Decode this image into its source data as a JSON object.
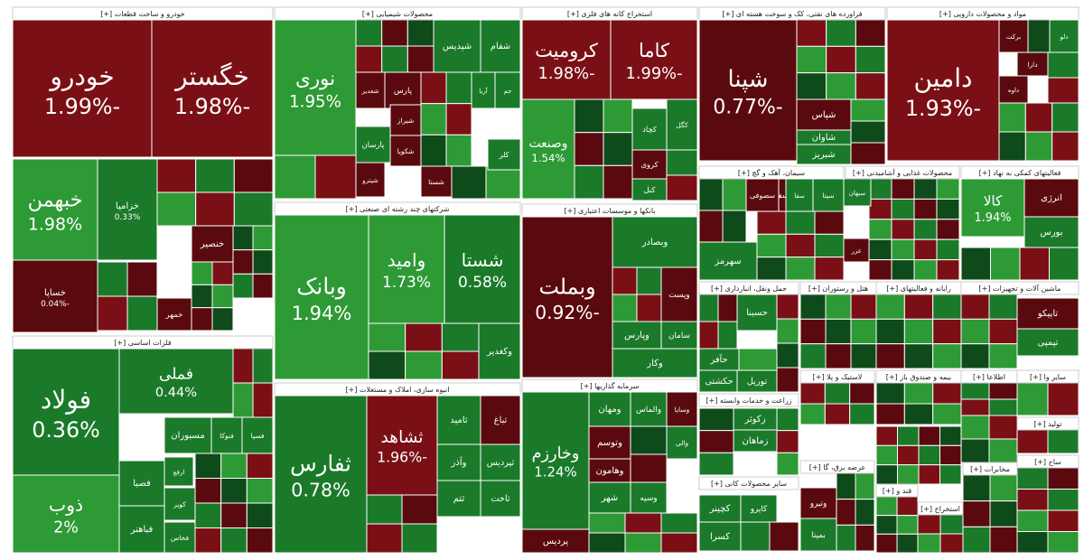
{
  "chart_data": {
    "type": "treemap",
    "colors": {
      "dark_red": "#5a0a0e",
      "red": "#7a1015",
      "bright_red": "#c8161d",
      "dark_green": "#0f4a1a",
      "green": "#1a7a2a",
      "bright_green": "#2e9a35",
      "header_bg": "#ffffff",
      "header_text": "#222222",
      "border": "#ffffff"
    },
    "sectors": [
      {
        "name": "خودرو و ساخت قطعات [+]",
        "stocks": [
          {
            "name": "خودرو",
            "change": "-1.99%",
            "value": -1.99
          },
          {
            "name": "خگستر",
            "change": "-1.98%",
            "value": -1.98
          },
          {
            "name": "خبهمن",
            "change": "1.98%",
            "value": 1.98
          },
          {
            "name": "خزامیا",
            "change": "0.33%",
            "value": 0.33
          },
          {
            "name": "خساپا",
            "change": "-0.04%",
            "value": -0.04
          },
          {
            "name": "خنصیر",
            "change": "",
            "value": -1
          },
          {
            "name": "خمهر",
            "change": "",
            "value": -1
          }
        ]
      },
      {
        "name": "فلزات اساسی [+]",
        "stocks": [
          {
            "name": "فولاد",
            "change": "0.36%",
            "value": 0.36
          },
          {
            "name": "فملی",
            "change": "0.44%",
            "value": 0.44
          },
          {
            "name": "ذوب",
            "change": "2%",
            "value": 2
          },
          {
            "name": "مسبوران",
            "change": "",
            "value": 1
          },
          {
            "name": "فنوکا",
            "change": "",
            "value": 1
          },
          {
            "name": "فسپا",
            "change": "",
            "value": 1
          },
          {
            "name": "فصبا",
            "change": "",
            "value": 1
          },
          {
            "name": "فباهنر",
            "change": "",
            "value": 1
          },
          {
            "name": "کویر",
            "change": "",
            "value": 1
          },
          {
            "name": "فخاس",
            "change": "",
            "value": 1
          },
          {
            "name": "ارفع",
            "change": "",
            "value": 1
          }
        ]
      },
      {
        "name": "محصولات شیمیایی [+]",
        "stocks": [
          {
            "name": "نوری",
            "change": "1.95%",
            "value": 1.95
          },
          {
            "name": "شپدیس",
            "change": "",
            "value": 1
          },
          {
            "name": "شفام",
            "change": "",
            "value": 1
          },
          {
            "name": "پارس",
            "change": "",
            "value": -1
          },
          {
            "name": "شغدیر",
            "change": "",
            "value": -1
          },
          {
            "name": "پارسان",
            "change": "",
            "value": 1
          },
          {
            "name": "شکویا",
            "change": "",
            "value": -1
          },
          {
            "name": "شیراز",
            "change": "",
            "value": -1
          },
          {
            "name": "شپترو",
            "change": "",
            "value": -1
          },
          {
            "name": "شستا",
            "change": "",
            "value": -1
          },
          {
            "name": "جم",
            "change": "",
            "value": 1
          },
          {
            "name": "آریا",
            "change": "",
            "value": 1
          },
          {
            "name": "کلر",
            "change": "",
            "value": 1
          }
        ]
      },
      {
        "name": "شرکتهای چند رشته ای صنعتی [+]",
        "stocks": [
          {
            "name": "وبانک",
            "change": "1.94%",
            "value": 1.94
          },
          {
            "name": "وامید",
            "change": "1.73%",
            "value": 1.73
          },
          {
            "name": "شستا",
            "change": "0.58%",
            "value": 0.58
          },
          {
            "name": "وکغدیر",
            "change": "",
            "value": 1
          }
        ]
      },
      {
        "name": "انبوه سازی، املاک و مستغلات [+]",
        "stocks": [
          {
            "name": "ثفارس",
            "change": "0.78%",
            "value": 0.78
          },
          {
            "name": "ثشاهد",
            "change": "-1.96%",
            "value": -1.96
          },
          {
            "name": "ثامید",
            "change": "",
            "value": 1
          },
          {
            "name": "وآذر",
            "change": "",
            "value": 1
          },
          {
            "name": "ثپردیس",
            "change": "",
            "value": 1
          },
          {
            "name": "ثباغ",
            "change": "",
            "value": -1
          },
          {
            "name": "ثاخت",
            "change": "",
            "value": 1
          },
          {
            "name": "ثتم",
            "change": "",
            "value": 1
          }
        ]
      },
      {
        "name": "استخراج کانه های فلزی [+]",
        "stocks": [
          {
            "name": "کرومیت",
            "change": "-1.98%",
            "value": -1.98
          },
          {
            "name": "کاما",
            "change": "-1.99%",
            "value": -1.99
          },
          {
            "name": "وصنعت",
            "change": "1.54%",
            "value": 1.54
          },
          {
            "name": "کگل",
            "change": "",
            "value": 1
          },
          {
            "name": "کچاد",
            "change": "",
            "value": 1
          },
          {
            "name": "کروی",
            "change": "",
            "value": -1
          },
          {
            "name": "کنل",
            "change": "",
            "value": 1
          }
        ]
      },
      {
        "name": "بانکها و موسسات اعتباری [+]",
        "stocks": [
          {
            "name": "وبملت",
            "change": "-0.92%",
            "value": -0.92
          },
          {
            "name": "وبصادر",
            "change": "",
            "value": 1
          },
          {
            "name": "وپست",
            "change": "",
            "value": -1
          },
          {
            "name": "وپارس",
            "change": "",
            "value": 1
          },
          {
            "name": "سامان",
            "change": "",
            "value": 1
          },
          {
            "name": "وکار",
            "change": "",
            "value": 1
          }
        ]
      },
      {
        "name": "سرمایه گذاریها [+]",
        "stocks": [
          {
            "name": "وخارزم",
            "change": "1.24%",
            "value": 1.24
          },
          {
            "name": "ومهان",
            "change": "",
            "value": 1
          },
          {
            "name": "والماس",
            "change": "",
            "value": 1
          },
          {
            "name": "وسایا",
            "change": "",
            "value": -1
          },
          {
            "name": "وتوسم",
            "change": "",
            "value": -1
          },
          {
            "name": "وهامون",
            "change": "",
            "value": -1
          },
          {
            "name": "والی",
            "change": "",
            "value": 1
          },
          {
            "name": "وسپه",
            "change": "",
            "value": 1
          },
          {
            "name": "شهر",
            "change": "",
            "value": 1
          },
          {
            "name": "پردیس",
            "change": "",
            "value": -1
          }
        ]
      },
      {
        "name": "فراورده های نفتی، کک و سوخت هسته ای [+]",
        "stocks": [
          {
            "name": "شپنا",
            "change": "-0.77%",
            "value": -0.77
          },
          {
            "name": "شپاس",
            "change": "",
            "value": -1
          },
          {
            "name": "شاوان",
            "change": "",
            "value": 1
          },
          {
            "name": "شبریز",
            "change": "",
            "value": 1
          }
        ]
      },
      {
        "name": "مواد و محصولات دارویی [+]",
        "stocks": [
          {
            "name": "دامین",
            "change": "-1.93%",
            "value": -1.93
          },
          {
            "name": "برکت",
            "change": "",
            "value": -1
          },
          {
            "name": "دلو",
            "change": "",
            "value": 1
          },
          {
            "name": "دارا",
            "change": "",
            "value": -1
          },
          {
            "name": "داوه",
            "change": "",
            "value": -1
          }
        ]
      },
      {
        "name": "سیمان، آهک و گچ [+]",
        "stocks": [
          {
            "name": "سیتا",
            "change": "",
            "value": 1
          },
          {
            "name": "سفار",
            "change": "",
            "value": -1
          },
          {
            "name": "سفا",
            "change": "",
            "value": 1
          },
          {
            "name": "سصوفی",
            "change": "",
            "value": -1
          },
          {
            "name": "سهرمز",
            "change": "",
            "value": 1
          },
          {
            "name": "سبهان",
            "change": "",
            "value": 1
          },
          {
            "name": "غزر",
            "change": "",
            "value": -1
          }
        ]
      },
      {
        "name": "محصولات غذایی و آشامیدنی [+]",
        "stocks": []
      },
      {
        "name": "فعالیتهای کمکی به نهاد [+]",
        "stocks": [
          {
            "name": "کالا",
            "change": "1.94%",
            "value": 1.94
          },
          {
            "name": "انرژی",
            "change": "",
            "value": -1
          },
          {
            "name": "بورس",
            "change": "",
            "value": 1
          }
        ]
      },
      {
        "name": "حمل ونقل، انبارداری [+]",
        "stocks": [
          {
            "name": "حسینا",
            "change": "",
            "value": 1
          },
          {
            "name": "حآفر",
            "change": "",
            "value": 1
          },
          {
            "name": "حکشتی",
            "change": "",
            "value": 1
          },
          {
            "name": "تورپل",
            "change": "",
            "value": 1
          }
        ]
      },
      {
        "name": "هتل و رستوران [+]",
        "stocks": []
      },
      {
        "name": "رایانه و فعالیتهای [+]",
        "stocks": []
      },
      {
        "name": "ماشین آلات و تجهیزات [+]",
        "stocks": [
          {
            "name": "تاپیکو",
            "change": "",
            "value": -1
          },
          {
            "name": "تپمپی",
            "change": "",
            "value": 1
          }
        ]
      },
      {
        "name": "زراعت و خدمات وابسته [+]",
        "stocks": [
          {
            "name": "زکوثر",
            "change": "",
            "value": 1
          },
          {
            "name": "زماهان",
            "change": "",
            "value": 1
          }
        ]
      },
      {
        "name": "لاستیک و پلا [+]",
        "stocks": []
      },
      {
        "name": "بیمه و صندوق باز [+]",
        "stocks": []
      },
      {
        "name": "اطلاعا [+]",
        "stocks": []
      },
      {
        "name": "سایر وا [+]",
        "stocks": []
      },
      {
        "name": "تولید [+]",
        "stocks": []
      },
      {
        "name": "عرضه برق، گا [+]",
        "stocks": [
          {
            "name": "بمپنا",
            "change": "",
            "value": 1
          },
          {
            "name": "وتیرو",
            "change": "",
            "value": -1
          }
        ]
      },
      {
        "name": "سایر محصولات کانی [+]",
        "stocks": [
          {
            "name": "کچینر",
            "change": "",
            "value": 1
          },
          {
            "name": "کاپرو",
            "change": "",
            "value": 1
          },
          {
            "name": "کسرا",
            "change": "",
            "value": 1
          }
        ]
      },
      {
        "name": "استخراج [+]",
        "stocks": []
      },
      {
        "name": "مخابرات [+]",
        "stocks": []
      },
      {
        "name": "قند و [+]",
        "stocks": []
      },
      {
        "name": "ساخ [+]",
        "stocks": []
      }
    ]
  }
}
